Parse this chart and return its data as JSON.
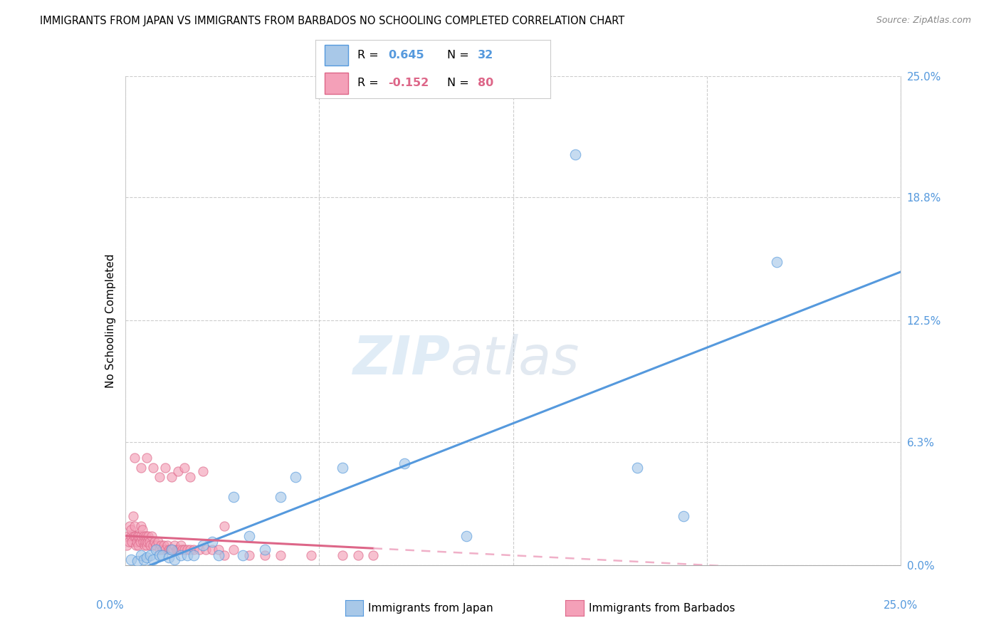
{
  "title": "IMMIGRANTS FROM JAPAN VS IMMIGRANTS FROM BARBADOS NO SCHOOLING COMPLETED CORRELATION CHART",
  "source": "Source: ZipAtlas.com",
  "ylabel": "No Schooling Completed",
  "xlim": [
    0.0,
    25.0
  ],
  "ylim": [
    0.0,
    25.0
  ],
  "ytick_labels": [
    "0.0%",
    "6.3%",
    "12.5%",
    "18.8%",
    "25.0%"
  ],
  "ytick_vals": [
    0.0,
    6.3,
    12.5,
    18.8,
    25.0
  ],
  "xtick_vals": [
    0.0,
    6.25,
    12.5,
    18.75,
    25.0
  ],
  "japan_color": "#a8c8e8",
  "barbados_color": "#f4a0b8",
  "japan_line_color": "#5599dd",
  "barbados_line_color": "#dd6688",
  "barbados_line_dashed_color": "#f0b0c8",
  "japan_points_x": [
    0.2,
    0.4,
    0.5,
    0.6,
    0.7,
    0.8,
    0.9,
    1.0,
    1.1,
    1.2,
    1.4,
    1.5,
    1.6,
    1.8,
    2.0,
    2.2,
    2.5,
    2.8,
    3.0,
    3.5,
    4.0,
    4.5,
    5.0,
    5.5,
    7.0,
    9.0,
    11.0,
    14.5,
    16.5,
    18.0,
    21.0,
    3.8
  ],
  "japan_points_y": [
    0.3,
    0.2,
    0.5,
    0.3,
    0.4,
    0.5,
    0.3,
    0.8,
    0.5,
    0.5,
    0.4,
    0.8,
    0.3,
    0.5,
    0.5,
    0.5,
    1.0,
    1.2,
    0.5,
    3.5,
    1.5,
    0.8,
    3.5,
    4.5,
    5.0,
    5.2,
    1.5,
    21.0,
    5.0,
    2.5,
    15.5,
    0.5
  ],
  "barbados_points_x": [
    0.05,
    0.1,
    0.12,
    0.15,
    0.18,
    0.2,
    0.22,
    0.25,
    0.28,
    0.3,
    0.32,
    0.35,
    0.38,
    0.4,
    0.42,
    0.45,
    0.48,
    0.5,
    0.52,
    0.55,
    0.58,
    0.6,
    0.62,
    0.65,
    0.68,
    0.7,
    0.72,
    0.75,
    0.78,
    0.8,
    0.85,
    0.9,
    0.95,
    1.0,
    1.05,
    1.1,
    1.15,
    1.2,
    1.25,
    1.3,
    1.35,
    1.4,
    1.45,
    1.5,
    1.55,
    1.6,
    1.65,
    1.7,
    1.75,
    1.8,
    1.85,
    1.9,
    2.0,
    2.1,
    2.2,
    2.4,
    2.6,
    2.8,
    3.0,
    3.2,
    3.5,
    4.0,
    4.5,
    5.0,
    6.0,
    7.0,
    7.5,
    8.0,
    0.3,
    0.5,
    0.7,
    0.9,
    1.1,
    1.3,
    1.5,
    1.7,
    1.9,
    2.1,
    2.5,
    3.2
  ],
  "barbados_points_y": [
    1.0,
    1.5,
    1.2,
    2.0,
    1.5,
    1.8,
    1.2,
    2.5,
    1.5,
    2.0,
    1.5,
    1.0,
    1.2,
    1.5,
    1.0,
    1.5,
    1.2,
    2.0,
    1.5,
    1.8,
    1.2,
    1.5,
    1.0,
    1.2,
    1.5,
    1.0,
    1.2,
    1.5,
    1.2,
    1.0,
    1.5,
    1.0,
    1.2,
    1.0,
    1.2,
    0.8,
    1.0,
    0.8,
    1.0,
    0.8,
    1.0,
    0.8,
    0.8,
    0.8,
    0.8,
    1.0,
    0.8,
    0.8,
    0.8,
    1.0,
    0.8,
    0.8,
    0.8,
    0.8,
    0.8,
    0.8,
    0.8,
    0.8,
    0.8,
    0.5,
    0.8,
    0.5,
    0.5,
    0.5,
    0.5,
    0.5,
    0.5,
    0.5,
    5.5,
    5.0,
    5.5,
    5.0,
    4.5,
    5.0,
    4.5,
    4.8,
    5.0,
    4.5,
    4.8,
    2.0
  ],
  "barbados_solid_xmax": 8.0,
  "watermark_zip": "ZIP",
  "watermark_atlas": "atlas",
  "legend_japan_R": "0.645",
  "legend_japan_N": "32",
  "legend_barbados_R": "-0.152",
  "legend_barbados_N": "80"
}
